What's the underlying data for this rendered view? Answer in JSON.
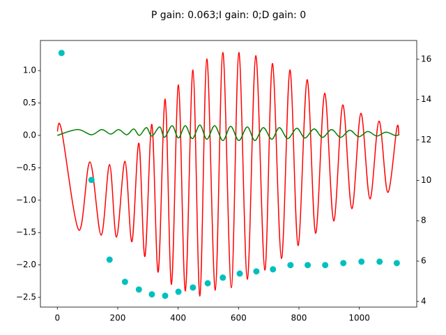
{
  "chart_data": {
    "type": "combo",
    "title": "P gain: 0.063;I gain: 0;D gain: 0",
    "xlim": [
      -56,
      1190
    ],
    "xticks": [
      0,
      200,
      400,
      600,
      800,
      1000
    ],
    "ylim": [
      -2.65,
      1.465
    ],
    "yticks": [
      {
        "value": -2.5,
        "label": "−2.5"
      },
      {
        "value": -2.0,
        "label": "−2.0"
      },
      {
        "value": -1.5,
        "label": "−1.5"
      },
      {
        "value": -1.0,
        "label": "−1.0"
      },
      {
        "value": -0.5,
        "label": "−0.5"
      },
      {
        "value": 0.0,
        "label": "0.0"
      },
      {
        "value": 0.5,
        "label": "0.5"
      },
      {
        "value": 1.0,
        "label": "1.0"
      }
    ],
    "y2lim": [
      3.72,
      16.93
    ],
    "y2ticks": [
      4,
      6,
      8,
      10,
      12,
      14,
      16
    ],
    "series": [
      {
        "type": "line",
        "color": "#ff0000",
        "x": [
          0,
          14,
          71,
          108,
          145,
          173,
          196,
          224,
          247,
          270,
          290,
          313,
          334,
          357,
          378,
          401,
          424,
          449,
          472,
          495,
          523,
          548,
          576,
          601,
          629,
          657,
          687,
          712,
          742,
          770,
          797,
          827,
          855,
          885,
          915,
          945,
          975,
          1005,
          1035,
          1065,
          1094,
          1124,
          1131
        ],
        "values": [
          0.06,
          0.08,
          -1.46,
          -0.41,
          -1.54,
          -0.45,
          -1.57,
          -0.4,
          -1.64,
          -0.12,
          -1.87,
          0.17,
          -2.11,
          0.56,
          -2.3,
          0.78,
          -2.4,
          1.01,
          -2.48,
          1.18,
          -2.39,
          1.28,
          -2.35,
          1.28,
          -2.22,
          1.23,
          -2.08,
          1.11,
          -1.9,
          1.01,
          -1.7,
          0.86,
          -1.51,
          0.65,
          -1.32,
          0.47,
          -1.13,
          0.34,
          -0.98,
          0.22,
          -0.88,
          0.11,
          0.0
        ]
      },
      {
        "type": "line",
        "color": "#008000",
        "x": [
          0,
          67,
          113,
          147,
          177,
          203,
          230,
          253,
          272,
          295,
          313,
          339,
          355,
          380,
          401,
          424,
          447,
          472,
          495,
          521,
          548,
          574,
          601,
          629,
          654,
          682,
          710,
          735,
          763,
          793,
          820,
          850,
          878,
          908,
          938,
          968,
          998,
          1028,
          1058,
          1088,
          1118,
          1131
        ],
        "values": [
          0,
          0.09,
          0.01,
          0.09,
          0.02,
          0.09,
          0.01,
          0.1,
          0,
          0.12,
          -0.01,
          0.13,
          -0.03,
          0.15,
          -0.04,
          0.15,
          -0.05,
          0.16,
          -0.06,
          0.15,
          -0.08,
          0.14,
          -0.08,
          0.13,
          -0.08,
          0.12,
          -0.06,
          0.12,
          -0.05,
          0.11,
          -0.04,
          0.1,
          -0.03,
          0.09,
          -0.03,
          0.08,
          -0.02,
          0.06,
          -0.01,
          0.05,
          0,
          0.01
        ]
      },
      {
        "type": "scatter",
        "axis": "y2",
        "color": "#00bfbf",
        "x": [
          14,
          113,
          173,
          224,
          270,
          313,
          357,
          401,
          449,
          498,
          548,
          604,
          659,
          714,
          772,
          829,
          887,
          947,
          1007,
          1067,
          1124
        ],
        "values": [
          16.31,
          10.02,
          6.07,
          4.97,
          4.59,
          4.35,
          4.28,
          4.48,
          4.69,
          4.9,
          5.18,
          5.38,
          5.49,
          5.59,
          5.8,
          5.8,
          5.8,
          5.9,
          5.97,
          5.97,
          5.9
        ]
      }
    ]
  }
}
